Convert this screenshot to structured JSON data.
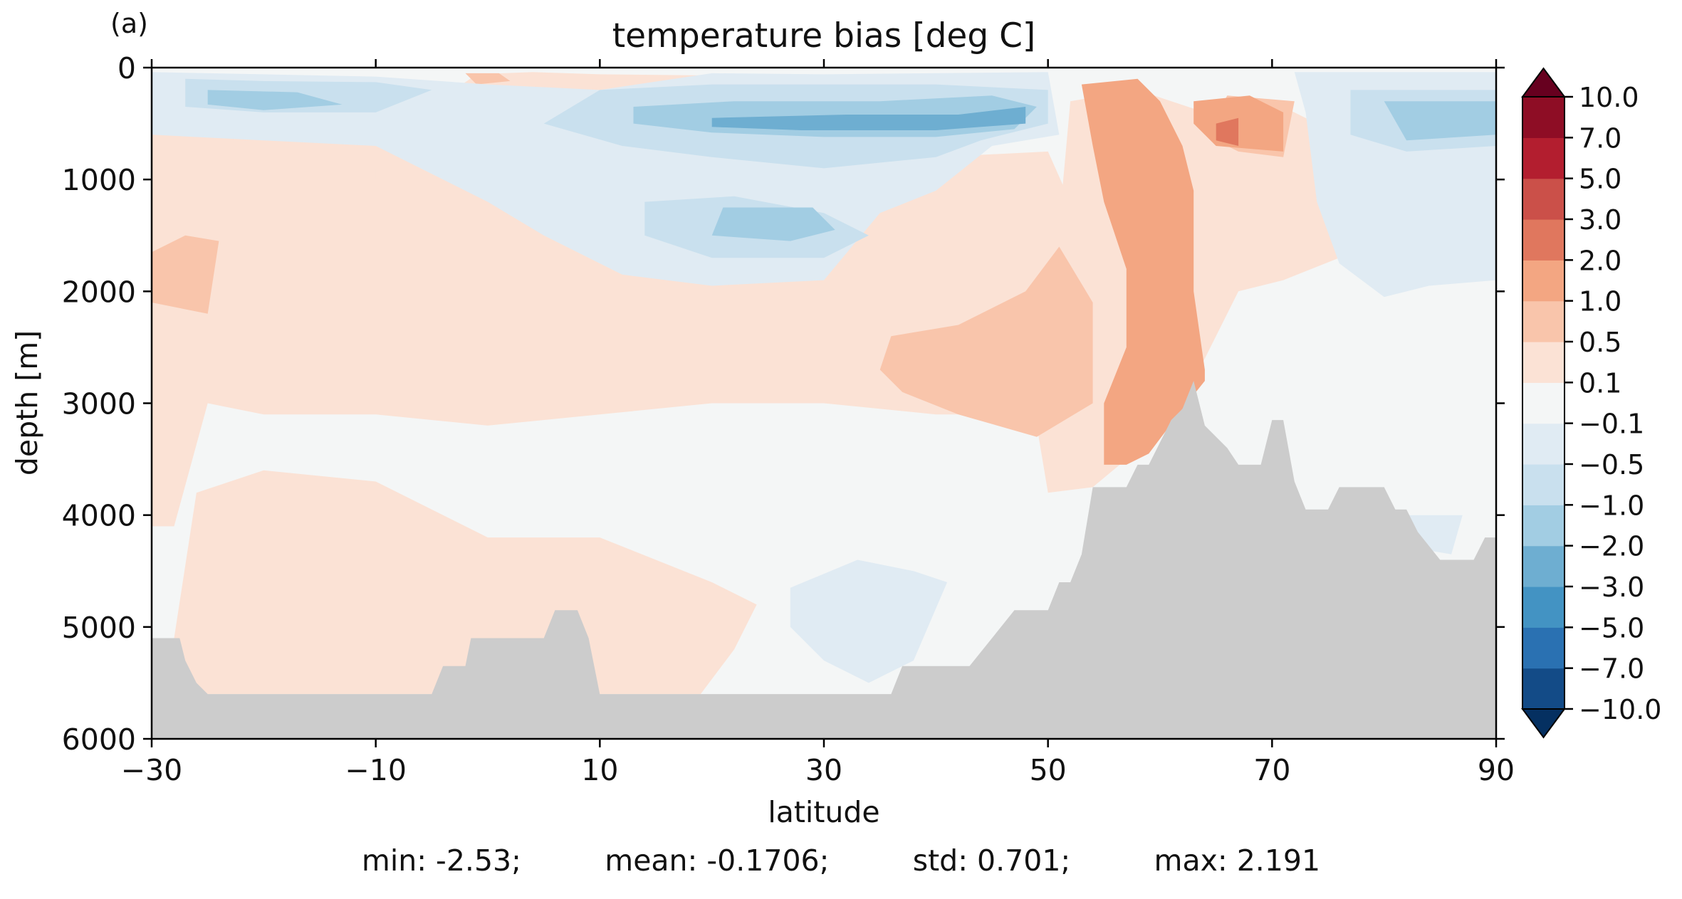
{
  "panel_label": "(a)",
  "chart_data": {
    "type": "heatmap",
    "title": "temperature bias [deg C]",
    "xlabel": "latitude",
    "ylabel": "depth [m]",
    "xlim": [
      -30,
      90
    ],
    "ylim": [
      6000,
      0
    ],
    "x_ticks": [
      -30,
      -10,
      10,
      30,
      50,
      70,
      90
    ],
    "x_tick_labels": [
      "−30",
      "−10",
      "10",
      "30",
      "50",
      "70",
      "90"
    ],
    "y_ticks": [
      0,
      1000,
      2000,
      3000,
      4000,
      5000,
      6000
    ],
    "y_tick_labels": [
      "0",
      "1000",
      "2000",
      "3000",
      "4000",
      "5000",
      "6000"
    ],
    "grid": false,
    "colorbar": {
      "levels": [
        -10.0,
        -7.0,
        -5.0,
        -3.0,
        -2.0,
        -1.0,
        -0.5,
        -0.1,
        0.1,
        0.5,
        1.0,
        2.0,
        3.0,
        5.0,
        7.0,
        10.0
      ],
      "tick_labels": [
        "−10.0",
        "−7.0",
        "−5.0",
        "−3.0",
        "−2.0",
        "−1.0",
        "−0.5",
        "−0.1",
        "0.1",
        "0.5",
        "1.0",
        "2.0",
        "3.0",
        "5.0",
        "7.0",
        "10.0"
      ],
      "colors": [
        "#053061",
        "#134b87",
        "#2a71b2",
        "#4393c3",
        "#6eaed1",
        "#a2cde3",
        "#c9e0ee",
        "#e0ebf3",
        "#f4f6f6",
        "#fbe2d5",
        "#f9c5ab",
        "#f3a682",
        "#e0775e",
        "#cb5049",
        "#b31e2f",
        "#8e0d25",
        "#67001f"
      ],
      "extend": "both"
    },
    "land_color": "#cccccc",
    "bathymetry": {
      "lat": [
        -30,
        -29,
        -27.5,
        -27,
        -26,
        -25,
        -24,
        -23,
        -22,
        -20,
        -19,
        -18,
        -10,
        -5,
        -4,
        -2,
        -1.5,
        -1,
        2,
        5,
        6,
        6.5,
        8,
        9,
        10,
        20,
        20.5,
        26,
        28,
        28.5,
        29,
        34,
        36,
        37,
        40,
        43,
        47,
        48,
        49,
        50,
        51,
        52,
        53,
        54,
        55,
        56,
        57,
        58,
        59,
        60,
        61,
        62,
        63,
        64,
        66,
        67,
        68,
        69,
        70,
        71,
        72,
        73,
        74,
        75,
        76,
        78,
        80,
        81,
        82,
        83,
        85,
        86,
        88,
        89,
        90
      ],
      "depth": [
        5100,
        5100,
        5100,
        5300,
        5500,
        5600,
        5600,
        5600,
        5600,
        5600,
        5600,
        5600,
        5600,
        5600,
        5350,
        5350,
        5100,
        5100,
        5100,
        5100,
        4850,
        4850,
        4850,
        5100,
        5600,
        5600,
        5600,
        5600,
        5600,
        5600,
        5600,
        5600,
        5600,
        5350,
        5350,
        5350,
        4850,
        4850,
        4850,
        4850,
        4600,
        4600,
        4350,
        3750,
        3750,
        3750,
        3750,
        3550,
        3550,
        3350,
        3150,
        3050,
        2800,
        3200,
        3400,
        3550,
        3550,
        3550,
        3150,
        3150,
        3700,
        3950,
        3950,
        3950,
        3750,
        3750,
        3750,
        3950,
        3950,
        4150,
        4400,
        4400,
        4400,
        4200,
        4200
      ]
    },
    "bias_regions": [
      {
        "bias": 0.3,
        "points": [
          [
            -30,
            600
          ],
          [
            -20,
            500
          ],
          [
            0,
            600
          ],
          [
            10,
            700
          ],
          [
            20,
            700
          ],
          [
            30,
            800
          ],
          [
            40,
            800
          ],
          [
            50,
            750
          ],
          [
            52,
            1200
          ],
          [
            51,
            1800
          ],
          [
            47,
            2300
          ],
          [
            44,
            3100
          ],
          [
            40,
            3100
          ],
          [
            30,
            3000
          ],
          [
            20,
            3000
          ],
          [
            10,
            3100
          ],
          [
            0,
            3200
          ],
          [
            -10,
            3100
          ],
          [
            -20,
            3100
          ],
          [
            -25,
            3000
          ],
          [
            -28,
            4100
          ],
          [
            -30,
            4100
          ]
        ]
      },
      {
        "bias": 0.3,
        "points": [
          [
            -26,
            3800
          ],
          [
            -20,
            3600
          ],
          [
            -10,
            3700
          ],
          [
            0,
            4200
          ],
          [
            10,
            4200
          ],
          [
            20,
            4600
          ],
          [
            24,
            4800
          ],
          [
            22,
            5200
          ],
          [
            19,
            5600
          ],
          [
            10,
            5600
          ],
          [
            -2,
            5600
          ],
          [
            -10,
            5600
          ],
          [
            -26,
            5600
          ],
          [
            -28,
            5100
          ]
        ]
      },
      {
        "bias": 0.3,
        "points": [
          [
            52,
            300
          ],
          [
            58,
            200
          ],
          [
            64,
            400
          ],
          [
            70,
            300
          ],
          [
            74,
            500
          ],
          [
            76,
            1000
          ],
          [
            76,
            1700
          ],
          [
            71,
            1900
          ],
          [
            67,
            2000
          ],
          [
            64,
            2600
          ],
          [
            63,
            2800
          ],
          [
            61,
            3050
          ],
          [
            57,
            3500
          ],
          [
            54,
            3750
          ],
          [
            50,
            3800
          ],
          [
            49,
            3200
          ],
          [
            50,
            2400
          ],
          [
            51,
            1400
          ]
        ]
      },
      {
        "bias": 0.3,
        "points": [
          [
            -1,
            60
          ],
          [
            4,
            40
          ],
          [
            10,
            60
          ],
          [
            20,
            70
          ],
          [
            20,
            300
          ],
          [
            10,
            350
          ],
          [
            0,
            260
          ],
          [
            -3,
            200
          ]
        ]
      },
      {
        "bias": 0.3,
        "points": [
          [
            -10,
            900
          ],
          [
            5,
            850
          ],
          [
            10,
            900
          ],
          [
            5,
            1000
          ],
          [
            -10,
            1000
          ]
        ]
      },
      {
        "bias": 0.3,
        "points": [
          [
            16,
            850
          ],
          [
            25,
            850
          ],
          [
            34,
            900
          ],
          [
            33,
            1050
          ],
          [
            20,
            1100
          ],
          [
            15,
            1000
          ]
        ]
      },
      {
        "bias": 0.8,
        "points": [
          [
            -30,
            1650
          ],
          [
            -27,
            1500
          ],
          [
            -24,
            1550
          ],
          [
            -25,
            2200
          ],
          [
            -30,
            2100
          ]
        ]
      },
      {
        "bias": 0.8,
        "points": [
          [
            36,
            2400
          ],
          [
            42,
            2300
          ],
          [
            48,
            2000
          ],
          [
            51,
            1600
          ],
          [
            54,
            2100
          ],
          [
            54,
            3000
          ],
          [
            49,
            3300
          ],
          [
            42,
            3100
          ],
          [
            37,
            2900
          ],
          [
            35,
            2700
          ]
        ]
      },
      {
        "bias": 0.8,
        "points": [
          [
            -2,
            50
          ],
          [
            1,
            50
          ],
          [
            2,
            120
          ],
          [
            -1,
            150
          ]
        ]
      },
      {
        "bias": 0.8,
        "points": [
          [
            66,
            250
          ],
          [
            72,
            300
          ],
          [
            71,
            800
          ],
          [
            67,
            750
          ],
          [
            64,
            600
          ]
        ]
      },
      {
        "bias": 1.5,
        "points": [
          [
            53,
            150
          ],
          [
            58,
            100
          ],
          [
            60,
            300
          ],
          [
            62,
            700
          ],
          [
            63,
            1100
          ],
          [
            63,
            2000
          ],
          [
            64,
            2700
          ],
          [
            64,
            2800
          ],
          [
            62,
            3050
          ],
          [
            59,
            3450
          ],
          [
            57,
            3550
          ],
          [
            55,
            3550
          ],
          [
            55,
            3000
          ],
          [
            57,
            2500
          ],
          [
            57,
            1800
          ],
          [
            55,
            1200
          ],
          [
            54,
            700
          ]
        ]
      },
      {
        "bias": 1.5,
        "points": [
          [
            63,
            300
          ],
          [
            68,
            250
          ],
          [
            71,
            400
          ],
          [
            71,
            750
          ],
          [
            65,
            700
          ],
          [
            63,
            500
          ]
        ]
      },
      {
        "bias": 2.5,
        "points": [
          [
            65,
            500
          ],
          [
            67,
            450
          ],
          [
            67,
            700
          ],
          [
            65,
            650
          ]
        ]
      },
      {
        "bias": -0.3,
        "points": [
          [
            -30,
            40
          ],
          [
            -20,
            60
          ],
          [
            -10,
            80
          ],
          [
            0,
            150
          ],
          [
            10,
            200
          ],
          [
            20,
            50
          ],
          [
            30,
            60
          ],
          [
            50,
            40
          ],
          [
            51,
            600
          ],
          [
            45,
            700
          ],
          [
            40,
            1100
          ],
          [
            35,
            1300
          ],
          [
            30,
            1900
          ],
          [
            20,
            1950
          ],
          [
            12,
            1850
          ],
          [
            5,
            1500
          ],
          [
            0,
            1200
          ],
          [
            -10,
            700
          ],
          [
            -20,
            650
          ],
          [
            -30,
            600
          ]
        ]
      },
      {
        "bias": -0.3,
        "points": [
          [
            72,
            40
          ],
          [
            90,
            40
          ],
          [
            90,
            1900
          ],
          [
            84,
            1950
          ],
          [
            80,
            2050
          ],
          [
            76,
            1750
          ],
          [
            74,
            1200
          ],
          [
            73,
            400
          ]
        ]
      },
      {
        "bias": -0.3,
        "points": [
          [
            27,
            4650
          ],
          [
            33,
            4400
          ],
          [
            38,
            4500
          ],
          [
            41,
            4600
          ],
          [
            38,
            5300
          ],
          [
            34,
            5500
          ],
          [
            30,
            5300
          ],
          [
            27,
            5000
          ]
        ]
      },
      {
        "bias": -0.3,
        "points": [
          [
            82,
            4000
          ],
          [
            87,
            4000
          ],
          [
            86,
            4350
          ],
          [
            83,
            4300
          ]
        ]
      },
      {
        "bias": -0.7,
        "points": [
          [
            -27,
            100
          ],
          [
            -20,
            120
          ],
          [
            -10,
            130
          ],
          [
            -5,
            200
          ],
          [
            -10,
            400
          ],
          [
            -20,
            400
          ],
          [
            -27,
            350
          ]
        ]
      },
      {
        "bias": -0.7,
        "points": [
          [
            10,
            200
          ],
          [
            20,
            150
          ],
          [
            30,
            150
          ],
          [
            40,
            150
          ],
          [
            50,
            200
          ],
          [
            50,
            500
          ],
          [
            44,
            650
          ],
          [
            40,
            800
          ],
          [
            30,
            900
          ],
          [
            20,
            800
          ],
          [
            12,
            700
          ],
          [
            5,
            500
          ]
        ]
      },
      {
        "bias": -0.7,
        "points": [
          [
            14,
            1200
          ],
          [
            22,
            1150
          ],
          [
            30,
            1300
          ],
          [
            34,
            1500
          ],
          [
            30,
            1700
          ],
          [
            20,
            1700
          ],
          [
            14,
            1500
          ]
        ]
      },
      {
        "bias": -0.7,
        "points": [
          [
            77,
            200
          ],
          [
            90,
            200
          ],
          [
            90,
            700
          ],
          [
            82,
            750
          ],
          [
            77,
            600
          ]
        ]
      },
      {
        "bias": -1.5,
        "points": [
          [
            -25,
            200
          ],
          [
            -17,
            220
          ],
          [
            -13,
            330
          ],
          [
            -20,
            380
          ],
          [
            -25,
            330
          ]
        ]
      },
      {
        "bias": -1.5,
        "points": [
          [
            13,
            350
          ],
          [
            22,
            300
          ],
          [
            35,
            300
          ],
          [
            45,
            250
          ],
          [
            49,
            350
          ],
          [
            47,
            550
          ],
          [
            40,
            620
          ],
          [
            30,
            620
          ],
          [
            20,
            580
          ],
          [
            13,
            500
          ]
        ]
      },
      {
        "bias": -1.5,
        "points": [
          [
            21,
            1250
          ],
          [
            29,
            1250
          ],
          [
            31,
            1450
          ],
          [
            27,
            1550
          ],
          [
            20,
            1500
          ]
        ]
      },
      {
        "bias": -1.5,
        "points": [
          [
            80,
            300
          ],
          [
            90,
            300
          ],
          [
            90,
            600
          ],
          [
            82,
            650
          ]
        ]
      },
      {
        "bias": -2.5,
        "points": [
          [
            20,
            450
          ],
          [
            32,
            420
          ],
          [
            42,
            420
          ],
          [
            48,
            350
          ],
          [
            48,
            500
          ],
          [
            40,
            560
          ],
          [
            28,
            560
          ],
          [
            20,
            530
          ]
        ]
      }
    ]
  },
  "stats": {
    "min": "min: -2.53;",
    "mean": "mean: -0.1706;",
    "std": "std: 0.701;",
    "max": "max: 2.191"
  }
}
